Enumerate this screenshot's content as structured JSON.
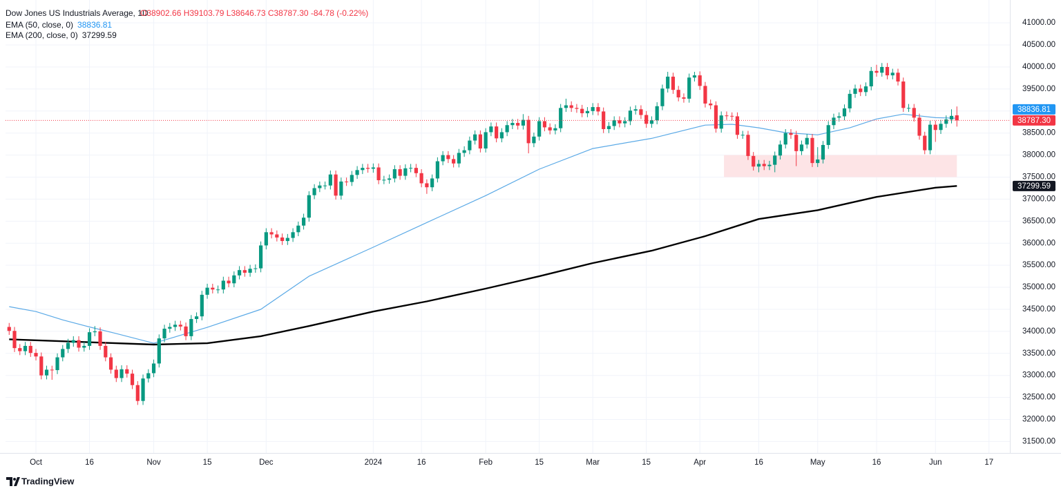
{
  "chart_data": {
    "type": "candlestick",
    "title": "Dow Jones US Industrials Average, 1D",
    "ohlc_label": "O38902.66 H39103.79 L38646.73 C38787.30 -84.78 (-0.22%)",
    "up_color": "#089981",
    "down_color": "#f23645",
    "open": [
      34100,
      34010,
      33620,
      33550,
      33670,
      33510,
      33430,
      33000,
      33130,
      33120,
      33410,
      33600,
      33740,
      33800,
      33630,
      33670,
      33980,
      34000,
      33670,
      33410,
      33130,
      32940,
      33140,
      33040,
      32780,
      32420,
      32930,
      33050,
      33270,
      33840,
      34060,
      34100,
      34150,
      34110,
      33890,
      34280,
      34340,
      34830,
      34990,
      34950,
      34950,
      35150,
      35090,
      35270,
      35390,
      35330,
      35420,
      35430,
      35950,
      36250,
      36200,
      36130,
      36050,
      36120,
      36250,
      36400,
      36580,
      37090,
      37250,
      37310,
      37310,
      37560,
      37080,
      37400,
      37390,
      37550,
      37660,
      37710,
      37690,
      37720,
      37430,
      37440,
      37470,
      37680,
      37530,
      37700,
      37710,
      37590,
      37360,
      37270,
      37470,
      37860,
      38000,
      37910,
      37810,
      38050,
      38110,
      38330,
      38470,
      38150,
      38520,
      38650,
      38380,
      38520,
      38680,
      38730,
      38670,
      38800,
      38270,
      38420,
      38770,
      38630,
      38560,
      38610,
      39070,
      39130,
      39070,
      39050,
      38950,
      39000,
      39090,
      38990,
      38590,
      38660,
      38790,
      38720,
      38770,
      39010,
      39040,
      38910,
      38710,
      38790,
      39110,
      39510,
      39780,
      39480,
      39310,
      39280,
      39760,
      39810,
      39570,
      39170,
      39130,
      38600,
      38900,
      38890,
      38880,
      38460,
      38460,
      37980,
      37740,
      37800,
      37750,
      37780,
      37990,
      38240,
      38500,
      38460,
      38090,
      38240,
      38390,
      37820,
      37900,
      38230,
      38680,
      38850,
      38880,
      39060,
      39390,
      39510,
      39430,
      39560,
      39910,
      39870,
      40000,
      39810,
      39870,
      39670,
      39070,
      39070,
      38850,
      38440,
      38110,
      38690,
      38570,
      38710,
      38810,
      38902.66
    ],
    "high": [
      34190,
      34100,
      33710,
      33760,
      33760,
      33600,
      33520,
      33220,
      33220,
      33500,
      33690,
      33830,
      33890,
      33890,
      33760,
      34070,
      34120,
      34090,
      33760,
      33500,
      33220,
      33230,
      33230,
      33130,
      32870,
      33020,
      33140,
      33360,
      33930,
      34150,
      34190,
      34240,
      34240,
      34200,
      34370,
      34430,
      34920,
      35080,
      35080,
      35040,
      35240,
      35240,
      35360,
      35480,
      35480,
      35510,
      35520,
      36040,
      36340,
      36340,
      36290,
      36220,
      36210,
      36340,
      36490,
      36670,
      37180,
      37340,
      37400,
      37400,
      37650,
      37650,
      37490,
      37490,
      37640,
      37750,
      37800,
      37800,
      37810,
      37810,
      37530,
      37560,
      37770,
      37770,
      37790,
      37800,
      37800,
      37680,
      37450,
      37560,
      37950,
      38090,
      38090,
      38000,
      38140,
      38200,
      38420,
      38560,
      38560,
      38610,
      38740,
      38740,
      38610,
      38770,
      38820,
      38820,
      38930,
      38890,
      38510,
      38860,
      38860,
      38720,
      38700,
      39160,
      39280,
      39220,
      39160,
      39140,
      39090,
      39180,
      39180,
      39080,
      38750,
      38880,
      38880,
      38860,
      39100,
      39130,
      39130,
      39000,
      38880,
      39200,
      39600,
      39890,
      39870,
      39570,
      39400,
      39850,
      39890,
      39900,
      39660,
      39260,
      39220,
      38990,
      38990,
      38970,
      38970,
      38550,
      38550,
      38070,
      37890,
      37890,
      37870,
      38080,
      38330,
      38590,
      38590,
      38550,
      38330,
      38480,
      38480,
      38180,
      38320,
      38770,
      38940,
      38970,
      39150,
      39480,
      39600,
      39600,
      39650,
      40000,
      40050,
      40090,
      40090,
      39960,
      39960,
      39760,
      39160,
      39160,
      38940,
      38530,
      38780,
      38780,
      38800,
      38900,
      39040,
      39103.79
    ],
    "low": [
      33920,
      33530,
      33460,
      33460,
      33420,
      33340,
      32910,
      32910,
      32900,
      33030,
      33320,
      33510,
      33650,
      33540,
      33540,
      33580,
      33890,
      33580,
      33320,
      33040,
      32850,
      32850,
      32950,
      32690,
      32330,
      32330,
      32840,
      32960,
      33180,
      33750,
      33970,
      34010,
      34020,
      33800,
      33800,
      34190,
      34250,
      34740,
      34860,
      34860,
      34860,
      35000,
      35000,
      35180,
      35240,
      35240,
      35330,
      35340,
      35860,
      36110,
      36040,
      35960,
      35960,
      36030,
      36160,
      36310,
      36490,
      37000,
      37160,
      37220,
      37220,
      36990,
      36990,
      37300,
      37300,
      37460,
      37570,
      37600,
      37600,
      37340,
      37340,
      37350,
      37380,
      37440,
      37440,
      37610,
      37500,
      37270,
      37120,
      37180,
      37380,
      37770,
      37820,
      37720,
      37720,
      37960,
      38020,
      38240,
      38060,
      38060,
      38430,
      38290,
      38290,
      38430,
      38590,
      38580,
      38580,
      38040,
      38180,
      38330,
      38540,
      38470,
      38470,
      38520,
      38980,
      38980,
      38960,
      38860,
      38860,
      38910,
      38900,
      38500,
      38500,
      38570,
      38630,
      38630,
      38680,
      38920,
      38820,
      38620,
      38620,
      38700,
      39020,
      39420,
      39390,
      39220,
      39190,
      39190,
      39670,
      39480,
      39080,
      39040,
      38510,
      38510,
      38800,
      38790,
      38370,
      38370,
      37890,
      37650,
      37610,
      37660,
      37660,
      37610,
      37900,
      38150,
      38370,
      37750,
      38000,
      38150,
      37730,
      37730,
      37810,
      38140,
      38590,
      38760,
      38790,
      38970,
      39300,
      39340,
      39340,
      39470,
      39780,
      39780,
      39720,
      39720,
      39580,
      38980,
      38980,
      38760,
      38350,
      38020,
      38020,
      38300,
      38480,
      38620,
      38720,
      38646.73
    ],
    "close": [
      34010,
      33620,
      33550,
      33670,
      33510,
      33430,
      33000,
      33130,
      33120,
      33410,
      33600,
      33740,
      33800,
      33630,
      33670,
      33980,
      34000,
      33670,
      33410,
      33130,
      32940,
      33140,
      33040,
      32780,
      32420,
      32930,
      33050,
      33270,
      33840,
      34060,
      34100,
      34150,
      34110,
      33890,
      34280,
      34340,
      34830,
      34990,
      34950,
      34950,
      35150,
      35090,
      35270,
      35390,
      35330,
      35420,
      35430,
      35950,
      36250,
      36200,
      36130,
      36050,
      36120,
      36250,
      36400,
      36580,
      37090,
      37250,
      37310,
      37310,
      37560,
      37080,
      37400,
      37390,
      37550,
      37660,
      37710,
      37690,
      37720,
      37430,
      37440,
      37470,
      37680,
      37530,
      37700,
      37710,
      37590,
      37360,
      37270,
      37470,
      37860,
      38000,
      37910,
      37810,
      38050,
      38110,
      38330,
      38470,
      38150,
      38520,
      38650,
      38380,
      38520,
      38680,
      38730,
      38670,
      38800,
      38270,
      38420,
      38770,
      38630,
      38560,
      38610,
      39070,
      39130,
      39070,
      39050,
      38950,
      39000,
      39090,
      38990,
      38590,
      38660,
      38790,
      38720,
      38770,
      39010,
      39040,
      38910,
      38710,
      38790,
      39110,
      39510,
      39780,
      39480,
      39310,
      39280,
      39760,
      39810,
      39570,
      39170,
      39130,
      38600,
      38900,
      38890,
      38880,
      38460,
      38460,
      37980,
      37740,
      37800,
      37750,
      37780,
      37990,
      38240,
      38500,
      38460,
      38090,
      38240,
      38390,
      37820,
      37900,
      38230,
      38680,
      38850,
      38880,
      39060,
      39390,
      39510,
      39430,
      39560,
      39910,
      39870,
      40000,
      39810,
      39870,
      39670,
      39070,
      39070,
      38850,
      38440,
      38110,
      38690,
      38570,
      38710,
      38810,
      38890,
      38787.3
    ],
    "last_price_label": "38787.30",
    "series": [
      {
        "name": "EMA (50, close, 0)",
        "color": "#2196f3",
        "line_color": "#5aa9e6",
        "width": 1.2,
        "x": [
          0,
          5,
          10,
          15,
          20,
          27,
          37,
          47,
          56,
          68,
          78,
          89,
          99,
          109,
          120,
          130,
          135,
          140,
          145,
          151,
          157,
          162,
          167,
          173,
          177
        ],
        "values": [
          34560,
          34450,
          34260,
          34100,
          33950,
          33730,
          34090,
          34500,
          35250,
          35910,
          36470,
          37080,
          37680,
          38150,
          38380,
          38680,
          38700,
          38620,
          38510,
          38460,
          38620,
          38820,
          38930,
          38850,
          38836.81
        ]
      },
      {
        "name": "EMA (200, close, 0)",
        "color": "#131722",
        "line_color": "#000000",
        "width": 2.4,
        "x": [
          0,
          27,
          37,
          47,
          56,
          68,
          78,
          89,
          99,
          109,
          120,
          130,
          140,
          151,
          162,
          173,
          177
        ],
        "values": [
          33820,
          33700,
          33730,
          33890,
          34120,
          34450,
          34680,
          34970,
          35250,
          35550,
          35830,
          36160,
          36550,
          36750,
          37050,
          37260,
          37299.59
        ]
      }
    ],
    "highlight": {
      "x": [
        133.5,
        177
      ],
      "y": [
        37500,
        38000
      ],
      "color": "#fde4e6"
    },
    "xlim": [
      -0.68,
      186.9
    ],
    "xticks": [
      {
        "value": 5,
        "label": "Oct"
      },
      {
        "value": 15,
        "label": "16"
      },
      {
        "value": 27,
        "label": "Nov"
      },
      {
        "value": 37,
        "label": "15"
      },
      {
        "value": 48,
        "label": "Dec"
      },
      {
        "value": 68,
        "label": "2024"
      },
      {
        "value": 77,
        "label": "16"
      },
      {
        "value": 89,
        "label": "Feb"
      },
      {
        "value": 99,
        "label": "15"
      },
      {
        "value": 109,
        "label": "Mar"
      },
      {
        "value": 119,
        "label": "15"
      },
      {
        "value": 129,
        "label": "Apr"
      },
      {
        "value": 140,
        "label": "16"
      },
      {
        "value": 151,
        "label": "May"
      },
      {
        "value": 162,
        "label": "16"
      },
      {
        "value": 173,
        "label": "Jun"
      },
      {
        "value": 183,
        "label": "17"
      }
    ],
    "ylim": [
      31240,
      41520
    ],
    "yticks": [
      {
        "value": 31500,
        "label": "31500.00"
      },
      {
        "value": 32000,
        "label": "32000.00"
      },
      {
        "value": 32500,
        "label": "32500.00"
      },
      {
        "value": 33000,
        "label": "33000.00"
      },
      {
        "value": 33500,
        "label": "33500.00"
      },
      {
        "value": 34000,
        "label": "34000.00"
      },
      {
        "value": 34500,
        "label": "34500.00"
      },
      {
        "value": 35000,
        "label": "35000.00"
      },
      {
        "value": 35500,
        "label": "35500.00"
      },
      {
        "value": 36000,
        "label": "36000.00"
      },
      {
        "value": 36500,
        "label": "36500.00"
      },
      {
        "value": 37000,
        "label": "37000.00"
      },
      {
        "value": 37500,
        "label": "37500.00"
      },
      {
        "value": 38000,
        "label": "38000.00"
      },
      {
        "value": 38500,
        "label": "38500.00"
      },
      {
        "value": 39000,
        "label": "39000.00"
      },
      {
        "value": 39500,
        "label": "39500.00"
      },
      {
        "value": 40000,
        "label": "40000.00"
      },
      {
        "value": 40500,
        "label": "40500.00"
      },
      {
        "value": 41000,
        "label": "41000.00"
      }
    ],
    "grid": true,
    "footer": "TradingView"
  }
}
